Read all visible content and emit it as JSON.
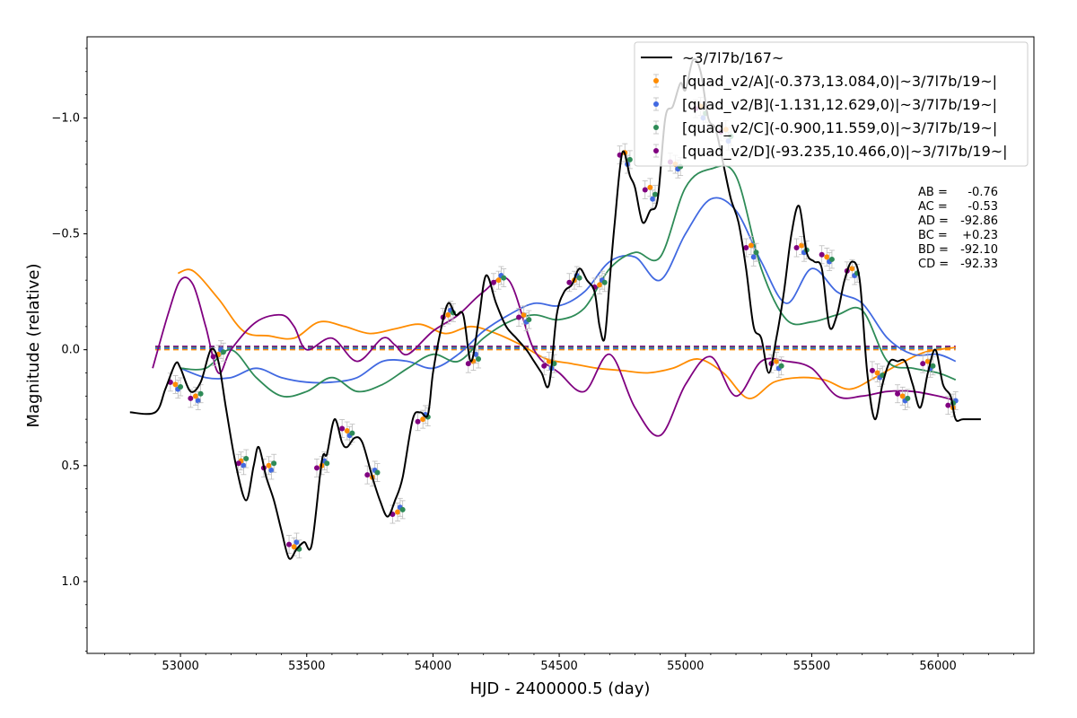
{
  "chart_data": {
    "type": "scatter",
    "xlabel": "HJD - 2400000.5 (day)",
    "ylabel": "Magnitude (relative)",
    "xlim": [
      52630,
      56380
    ],
    "ylim": [
      1.31,
      -1.35
    ],
    "y_inverted": true,
    "x_ticks": [
      53000,
      53500,
      54000,
      54500,
      55000,
      55500,
      56000
    ],
    "x_tick_labels": [
      "53000",
      "53500",
      "54000",
      "54500",
      "55000",
      "55500",
      "56000"
    ],
    "y_ticks": [
      -1.0,
      -0.5,
      0.0,
      0.5,
      1.0
    ],
    "y_tick_labels": [
      "−1.0",
      "−0.5",
      "0.0",
      "0.5",
      "1.0"
    ],
    "grid": false,
    "legend_position": "top-right",
    "stats": [
      {
        "label": "AB =",
        "value": "-0.76"
      },
      {
        "label": "AC =",
        "value": "-0.53"
      },
      {
        "label": "AD =",
        "value": "-92.86"
      },
      {
        "label": "BC =",
        "value": "+0.23"
      },
      {
        "label": "BD =",
        "value": "-92.10"
      },
      {
        "label": "CD =",
        "value": "-92.33"
      }
    ],
    "series": [
      {
        "name": "~3/7l7b/167~",
        "kind": "line",
        "color": "#000000",
        "x": [
          52800,
          52900,
          52940,
          52980,
          53000,
          53040,
          53080,
          53120,
          53150,
          53180,
          53220,
          53260,
          53290,
          53310,
          53340,
          53370,
          53400,
          53430,
          53460,
          53490,
          53520,
          53560,
          53580,
          53610,
          53640,
          53660,
          53690,
          53720,
          53760,
          53790,
          53820,
          53850,
          53880,
          53920,
          53950,
          53980,
          54000,
          54030,
          54060,
          54090,
          54120,
          54150,
          54180,
          54210,
          54250,
          54290,
          54330,
          54370,
          54400,
          54430,
          54460,
          54490,
          54520,
          54550,
          54580,
          54610,
          54640,
          54660,
          54680,
          54700,
          54720,
          54750,
          54780,
          54800,
          54830,
          54860,
          54890,
          54920,
          54950,
          54980,
          55000,
          55030,
          55060,
          55090,
          55120,
          55150,
          55180,
          55210,
          55240,
          55270,
          55300,
          55330,
          55360,
          55390,
          55420,
          55450,
          55480,
          55510,
          55540,
          55570,
          55600,
          55630,
          55660,
          55690,
          55720,
          55750,
          55780,
          55810,
          55840,
          55870,
          55900,
          55930,
          55960,
          55990,
          56020,
          56050,
          56070,
          56100,
          56170
        ],
        "y": [
          0.27,
          0.27,
          0.17,
          0.06,
          0.08,
          0.18,
          0.14,
          0.0,
          0.05,
          0.25,
          0.5,
          0.65,
          0.5,
          0.42,
          0.55,
          0.65,
          0.78,
          0.9,
          0.86,
          0.83,
          0.84,
          0.48,
          0.45,
          0.3,
          0.4,
          0.42,
          0.38,
          0.4,
          0.55,
          0.65,
          0.72,
          0.65,
          0.55,
          0.3,
          0.27,
          0.28,
          0.1,
          -0.08,
          -0.2,
          -0.15,
          -0.15,
          0.05,
          -0.12,
          -0.32,
          -0.2,
          -0.1,
          -0.05,
          0.0,
          0.05,
          0.1,
          0.15,
          -0.15,
          -0.25,
          -0.28,
          -0.35,
          -0.3,
          -0.25,
          -0.1,
          -0.05,
          -0.3,
          -0.55,
          -0.85,
          -0.75,
          -0.7,
          -0.55,
          -0.6,
          -0.65,
          -1.0,
          -1.05,
          -1.15,
          -1.12,
          -1.25,
          -1.2,
          -1.0,
          -0.95,
          -0.8,
          -0.65,
          -0.55,
          -0.35,
          -0.1,
          -0.05,
          0.1,
          -0.05,
          -0.25,
          -0.5,
          -0.62,
          -0.42,
          -0.38,
          -0.35,
          -0.1,
          -0.15,
          -0.3,
          -0.38,
          -0.3,
          0.1,
          0.3,
          0.15,
          0.05,
          0.05,
          0.05,
          0.15,
          0.25,
          0.1,
          0.0,
          0.15,
          0.2,
          0.3,
          0.3,
          0.3
        ]
      },
      {
        "name": "[quad_v2/A](-0.373,13.084,0)|~3/7l7b/19~|",
        "kind": "points",
        "color": "#ff8c00",
        "x": [
          52980,
          53060,
          53150,
          53240,
          53350,
          53450,
          53560,
          53660,
          53760,
          53860,
          53960,
          54060,
          54160,
          54260,
          54360,
          54460,
          54560,
          54660,
          54760,
          54860,
          54960,
          55060,
          55160,
          55260,
          55360,
          55460,
          55560,
          55660,
          55760,
          55860,
          55960,
          56060
        ],
        "y": [
          0.15,
          0.2,
          0.02,
          0.48,
          0.5,
          0.85,
          0.5,
          0.35,
          0.55,
          0.7,
          0.3,
          -0.15,
          0.05,
          -0.3,
          -0.15,
          0.05,
          -0.3,
          -0.28,
          -0.85,
          -0.7,
          -0.8,
          -1.05,
          -0.95,
          -0.45,
          0.05,
          -0.45,
          -0.4,
          -0.35,
          0.1,
          0.2,
          0.05,
          0.25
        ],
        "fit": {
          "x": [
            52990,
            53050,
            53150,
            53250,
            53350,
            53450,
            53550,
            53650,
            53750,
            53850,
            53950,
            54050,
            54150,
            54250,
            54350,
            54450,
            54550,
            54650,
            54750,
            54850,
            54950,
            55050,
            55150,
            55250,
            55350,
            55450,
            55550,
            55650,
            55750,
            55850,
            55950,
            56070
          ],
          "y": [
            -0.33,
            -0.34,
            -0.22,
            -0.08,
            -0.06,
            -0.05,
            -0.12,
            -0.1,
            -0.07,
            -0.09,
            -0.11,
            -0.07,
            -0.1,
            -0.07,
            -0.02,
            0.04,
            0.06,
            0.08,
            0.09,
            0.1,
            0.08,
            0.04,
            0.1,
            0.21,
            0.14,
            0.12,
            0.13,
            0.17,
            0.12,
            0.06,
            0.01,
            -0.01
          ]
        }
      },
      {
        "name": "[quad_v2/B](-1.131,12.629,0)|~3/7l7b/19~|",
        "kind": "points",
        "color": "#4169e1",
        "x": [
          52990,
          53070,
          53160,
          53250,
          53360,
          53460,
          53570,
          53670,
          53770,
          53870,
          53970,
          54070,
          54170,
          54270,
          54370,
          54470,
          54570,
          54670,
          54770,
          54870,
          54970,
          55070,
          55170,
          55270,
          55370,
          55470,
          55570,
          55670,
          55770,
          55870,
          55970,
          56070
        ],
        "y": [
          0.17,
          0.22,
          0.0,
          0.5,
          0.52,
          0.83,
          0.48,
          0.37,
          0.52,
          0.68,
          0.28,
          -0.17,
          0.02,
          -0.32,
          -0.12,
          0.08,
          -0.32,
          -0.3,
          -0.8,
          -0.65,
          -0.78,
          -1.0,
          -0.9,
          -0.4,
          0.08,
          -0.42,
          -0.38,
          -0.32,
          0.12,
          0.22,
          0.08,
          0.22
        ],
        "fit": {
          "x": [
            53000,
            53100,
            53200,
            53300,
            53400,
            53500,
            53600,
            53700,
            53800,
            53900,
            54000,
            54100,
            54200,
            54300,
            54400,
            54500,
            54600,
            54700,
            54800,
            54900,
            55000,
            55100,
            55200,
            55300,
            55400,
            55500,
            55600,
            55700,
            55800,
            55900,
            56000,
            56070
          ],
          "y": [
            0.08,
            0.12,
            0.12,
            0.08,
            0.12,
            0.14,
            0.14,
            0.12,
            0.05,
            0.05,
            0.08,
            0.02,
            -0.08,
            -0.15,
            -0.2,
            -0.19,
            -0.25,
            -0.38,
            -0.4,
            -0.3,
            -0.5,
            -0.65,
            -0.6,
            -0.38,
            -0.2,
            -0.35,
            -0.25,
            -0.2,
            -0.05,
            0.02,
            0.02,
            0.05
          ]
        }
      },
      {
        "name": "[quad_v2/C](-0.900,11.559,0)|~3/7l7b/19~|",
        "kind": "points",
        "color": "#2e8b57",
        "x": [
          53000,
          53080,
          53170,
          53260,
          53370,
          53470,
          53580,
          53680,
          53780,
          53880,
          53980,
          54080,
          54180,
          54280,
          54380,
          54480,
          54580,
          54680,
          54780,
          54880,
          54980,
          55080,
          55180,
          55280,
          55380,
          55480,
          55580,
          55680,
          55780,
          55880,
          55980,
          56060
        ],
        "y": [
          0.16,
          0.19,
          0.01,
          0.47,
          0.49,
          0.86,
          0.49,
          0.36,
          0.53,
          0.69,
          0.29,
          -0.16,
          0.04,
          -0.31,
          -0.13,
          0.06,
          -0.31,
          -0.29,
          -0.82,
          -0.67,
          -0.79,
          -1.02,
          -0.92,
          -0.42,
          0.07,
          -0.43,
          -0.39,
          -0.33,
          0.11,
          0.21,
          0.07,
          0.23
        ],
        "fit": {
          "x": [
            53000,
            53100,
            53200,
            53300,
            53400,
            53500,
            53600,
            53700,
            53800,
            53900,
            54000,
            54100,
            54200,
            54300,
            54400,
            54500,
            54600,
            54700,
            54800,
            54900,
            55000,
            55100,
            55200,
            55300,
            55400,
            55500,
            55600,
            55700,
            55800,
            55900,
            56000,
            56070
          ],
          "y": [
            0.08,
            0.08,
            0.0,
            0.12,
            0.2,
            0.18,
            0.12,
            0.18,
            0.15,
            0.08,
            0.02,
            0.05,
            -0.05,
            -0.12,
            -0.15,
            -0.13,
            -0.18,
            -0.35,
            -0.42,
            -0.4,
            -0.7,
            -0.78,
            -0.75,
            -0.35,
            -0.13,
            -0.12,
            -0.15,
            -0.17,
            0.05,
            0.08,
            0.1,
            0.13
          ]
        }
      },
      {
        "name": "[quad_v2/D](-93.235,10.466,0)|~3/7l7b/19~|",
        "kind": "points",
        "color": "#800080",
        "x": [
          52960,
          53040,
          53130,
          53230,
          53330,
          53430,
          53540,
          53640,
          53740,
          53840,
          53940,
          54040,
          54140,
          54240,
          54340,
          54440,
          54540,
          54640,
          54740,
          54840,
          54940,
          55040,
          55140,
          55240,
          55340,
          55440,
          55540,
          55640,
          55740,
          55840,
          55940,
          56040
        ],
        "y": [
          0.14,
          0.21,
          0.03,
          0.49,
          0.51,
          0.84,
          0.51,
          0.34,
          0.54,
          0.71,
          0.31,
          -0.14,
          0.06,
          -0.29,
          -0.14,
          0.07,
          -0.29,
          -0.27,
          -0.84,
          -0.69,
          -0.81,
          -1.04,
          -0.94,
          -0.44,
          0.06,
          -0.44,
          -0.41,
          -0.34,
          0.09,
          0.19,
          0.06,
          0.24
        ],
        "fit": {
          "x": [
            52890,
            52950,
            53000,
            53050,
            53100,
            53150,
            53200,
            53300,
            53400,
            53450,
            53500,
            53600,
            53700,
            53800,
            53850,
            53900,
            54000,
            54100,
            54200,
            54300,
            54400,
            54500,
            54600,
            54700,
            54800,
            54900,
            55000,
            55100,
            55200,
            55300,
            55400,
            55500,
            55600,
            55700,
            55800,
            55900,
            56000,
            56070
          ],
          "y": [
            0.08,
            -0.15,
            -0.3,
            -0.28,
            -0.1,
            0.1,
            0.0,
            -0.12,
            -0.15,
            -0.1,
            0.0,
            -0.05,
            0.05,
            -0.05,
            -0.02,
            0.02,
            -0.08,
            -0.15,
            -0.25,
            -0.3,
            0.0,
            0.1,
            0.18,
            0.02,
            0.25,
            0.37,
            0.15,
            0.03,
            0.2,
            0.05,
            0.05,
            0.08,
            0.2,
            0.2,
            0.18,
            0.18,
            0.2,
            0.22
          ]
        }
      }
    ]
  }
}
